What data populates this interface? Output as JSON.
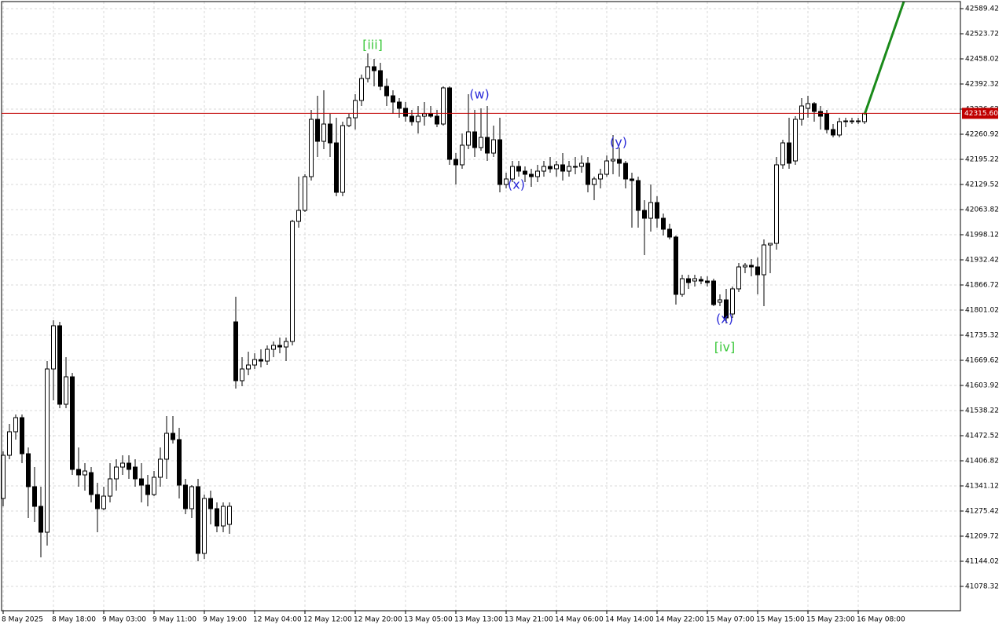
{
  "chart_data": {
    "type": "candlestick",
    "grid": true,
    "up_color": "#ffffff",
    "down_color": "#000000",
    "wick_color": "#000000",
    "ylim": [
      41014.67,
      42607.9
    ],
    "yticks": [
      42589.42,
      42523.72,
      42458.02,
      42392.32,
      42326.62,
      42260.92,
      42195.22,
      42129.52,
      42063.82,
      41998.12,
      41932.42,
      41866.72,
      41801.02,
      41735.32,
      41669.62,
      41603.92,
      41538.22,
      41472.52,
      41406.82,
      41341.12,
      41275.42,
      41209.72,
      41144.02,
      41078.32
    ],
    "xlim": [
      -0.25,
      152.25
    ],
    "xticks": [
      {
        "value": 0,
        "label": "8 May 2025"
      },
      {
        "value": 8,
        "label": "8 May 18:00"
      },
      {
        "value": 16,
        "label": "9 May 03:00"
      },
      {
        "value": 24,
        "label": "9 May 11:00"
      },
      {
        "value": 32,
        "label": "9 May 19:00"
      },
      {
        "value": 40,
        "label": "12 May 04:00"
      },
      {
        "value": 48,
        "label": "12 May 12:00"
      },
      {
        "value": 56,
        "label": "12 May 20:00"
      },
      {
        "value": 64,
        "label": "13 May 05:00"
      },
      {
        "value": 72,
        "label": "13 May 13:00"
      },
      {
        "value": 80,
        "label": "13 May 21:00"
      },
      {
        "value": 88,
        "label": "14 May 06:00"
      },
      {
        "value": 96,
        "label": "14 May 14:00"
      },
      {
        "value": 104,
        "label": "14 May 22:00"
      },
      {
        "value": 112,
        "label": "15 May 07:00"
      },
      {
        "value": 120,
        "label": "15 May 15:00"
      },
      {
        "value": 128,
        "label": "15 May 23:00"
      },
      {
        "value": 136,
        "label": "16 May 08:00"
      }
    ],
    "price_line": {
      "value": 42315.6,
      "label": "42315.60",
      "color": "#c00000"
    },
    "annotations": [
      {
        "text": "[iii]",
        "color": "#3cc83c"
      },
      {
        "text": "(w)",
        "color": "#2a2ad8"
      },
      {
        "text": "(x)",
        "color": "#2a2ad8"
      },
      {
        "text": "(y)",
        "color": "#2a2ad8"
      },
      {
        "text": "(x)",
        "color": "#2a2ad8"
      },
      {
        "text": "[iv]",
        "color": "#3cc83c"
      }
    ],
    "open": [
      41308.3,
      41421.2,
      41482.8,
      41519.7,
      41425.3,
      41339.1,
      41287.7,
      41220.0,
      41647.0,
      41760.0,
      41554.7,
      41626.5,
      41384.3,
      41369.9,
      41376.0,
      41318.5,
      41281.6,
      41314.4,
      41359.6,
      41390.4,
      41400.7,
      41390.4,
      41359.6,
      41343.2,
      41318.5,
      41363.7,
      41411.0,
      41478.7,
      41462.3,
      41343.2,
      41281.6,
      41339.1,
      41164.6,
      41308.3,
      41281.6,
      41236.4,
      41240.5,
      41770.2,
      41616.3,
      41647.0,
      41657.3,
      41671.7,
      41667.6,
      41698.4,
      41708.7,
      41704.5,
      41718.9,
      42033.0,
      42061.8,
      42150.0,
      42299.9,
      42242.4,
      42287.6,
      42238.3,
      42109.0,
      42283.5,
      42304.0,
      42349.2,
      42406.7,
      42437.5,
      42427.2,
      42386.2,
      42361.5,
      42345.1,
      42328.7,
      42308.1,
      42293.8,
      42308.1,
      42314.3,
      42308.1,
      42287.6,
      42382.1,
      42195.2,
      42180.9,
      42232.2,
      42267.1,
      42226.0,
      42252.7,
      42211.6,
      42246.5,
      42129.5,
      42143.9,
      42176.7,
      42164.4,
      42156.2,
      42150.0,
      42164.4,
      42176.7,
      42170.6,
      42180.9,
      42164.4,
      42176.7,
      42176.7,
      42185.0,
      42129.5,
      42143.9,
      42156.2,
      42191.1,
      42195.2,
      42185.0,
      42143.9,
      42139.8,
      42061.8,
      42041.2,
      42082.3,
      42041.2,
      42012.5,
      41992.0,
      41842.1,
      41883.1,
      41877.0,
      41881.1,
      41877.0,
      41877.0,
      41821.6,
      41827.7,
      41790.8,
      41856.5,
      41913.9,
      41918.1,
      41913.9,
      41893.4,
      41971.4,
      41975.5,
      42180.9,
      42238.3,
      42191.1,
      42299.9,
      42328.7,
      42341.0,
      42320.5,
      42314.3,
      42273.2,
      42258.9,
      42293.8,
      42293.8,
      42293.8,
      42293.8
    ],
    "high": [
      41431.5,
      41503.3,
      41528.0,
      41528.0,
      41441.7,
      41390.4,
      41339.1,
      41667.6,
      41774.3,
      41770.2,
      41677.8,
      41636.8,
      41441.7,
      41400.7,
      41390.4,
      41349.3,
      41339.1,
      41400.7,
      41411.0,
      41421.2,
      41421.2,
      41411.0,
      41400.7,
      41369.9,
      41380.1,
      41441.7,
      41523.9,
      41523.9,
      41493.0,
      41359.6,
      41343.2,
      41359.6,
      41318.5,
      41328.8,
      41298.0,
      41298.0,
      41298.0,
      41836.0,
      41677.8,
      41692.2,
      41688.1,
      41698.4,
      41708.7,
      41718.9,
      41729.2,
      41729.2,
      42037.1,
      42150.0,
      42156.2,
      42324.6,
      42361.5,
      42375.9,
      42314.3,
      42304.0,
      42293.8,
      42314.3,
      42365.6,
      42417.0,
      42472.4,
      42458.0,
      42447.8,
      42406.7,
      42375.9,
      42355.4,
      42345.1,
      42324.6,
      42334.8,
      42345.1,
      42334.8,
      42324.6,
      42386.2,
      42386.2,
      42211.6,
      42263.0,
      42365.6,
      42324.6,
      42328.7,
      42334.8,
      42283.5,
      42304.0,
      42160.3,
      42191.1,
      42191.1,
      42176.7,
      42170.6,
      42180.9,
      42191.1,
      42201.4,
      42191.1,
      42211.6,
      42191.1,
      42201.4,
      42205.5,
      42201.4,
      42150.0,
      42170.6,
      42205.5,
      42258.9,
      42226.0,
      42191.1,
      42160.3,
      42150.0,
      42088.5,
      42129.5,
      42098.7,
      42053.6,
      42026.9,
      41996.1,
      41893.4,
      41893.4,
      41893.4,
      41889.3,
      41889.3,
      41883.1,
      41842.1,
      41856.5,
      41862.6,
      41924.2,
      41924.2,
      41934.5,
      41938.6,
      41985.8,
      41975.5,
      42201.4,
      42246.5,
      42304.0,
      42308.1,
      42355.4,
      42361.5,
      42345.1,
      42334.8,
      42324.6,
      42287.6,
      42304.0,
      42304.0,
      42304.0,
      42304.0,
      42320.5
    ],
    "low": [
      41287.7,
      41411.0,
      41462.3,
      41400.7,
      41257.0,
      41246.7,
      41154.3,
      41185.1,
      41564.9,
      41544.4,
      41544.4,
      41369.9,
      41339.1,
      41328.8,
      41298.0,
      41220.0,
      41277.5,
      41298.0,
      41328.8,
      41369.9,
      41359.6,
      41339.1,
      41298.0,
      41287.7,
      41314.4,
      41339.1,
      41359.6,
      41452.0,
      41308.3,
      41267.2,
      41257.0,
      41144.0,
      41150.2,
      41240.5,
      41220.0,
      41220.0,
      41215.9,
      41595.7,
      41601.9,
      41630.6,
      41647.0,
      41651.2,
      41657.3,
      41677.8,
      41688.1,
      41667.6,
      41708.7,
      42016.6,
      42057.7,
      42139.8,
      42201.4,
      42221.9,
      42201.4,
      42098.7,
      42098.7,
      42279.4,
      42273.2,
      42334.8,
      42396.5,
      42386.2,
      42375.9,
      42334.8,
      42314.3,
      42304.0,
      42293.8,
      42283.5,
      42263.0,
      42283.5,
      42304.0,
      42279.4,
      42283.5,
      42180.9,
      42129.5,
      42170.6,
      42221.9,
      42201.4,
      42217.8,
      42191.1,
      42201.4,
      42109.0,
      42119.3,
      42135.7,
      42150.0,
      42135.7,
      42123.4,
      42135.7,
      42150.0,
      42160.3,
      42150.0,
      42139.8,
      42150.0,
      42156.2,
      42160.3,
      42109.0,
      42088.5,
      42119.3,
      42150.0,
      42156.2,
      42150.0,
      42119.3,
      42016.6,
      42016.6,
      41944.7,
      42006.3,
      42016.6,
      41996.1,
      41985.8,
      41815.4,
      41836.0,
      41856.5,
      41862.6,
      41868.8,
      41862.6,
      41811.3,
      41811.3,
      41766.1,
      41780.5,
      41848.2,
      41897.5,
      41889.3,
      41842.1,
      41811.3,
      41897.5,
      41959.1,
      42170.6,
      42170.6,
      42180.9,
      42283.5,
      42304.0,
      42293.8,
      42273.2,
      42263.0,
      42252.7,
      42252.7,
      42279.4,
      42287.6,
      42287.6,
      42287.6
    ],
    "close": [
      41421.2,
      41482.8,
      41519.7,
      41425.3,
      41339.1,
      41287.7,
      41220.0,
      41647.0,
      41760.0,
      41554.7,
      41626.5,
      41384.3,
      41369.9,
      41380.1,
      41318.5,
      41281.6,
      41314.4,
      41359.6,
      41390.4,
      41400.7,
      41384.3,
      41359.6,
      41343.2,
      41318.5,
      41363.7,
      41411.0,
      41478.7,
      41462.3,
      41343.2,
      41281.6,
      41339.1,
      41164.6,
      41308.3,
      41281.6,
      41236.4,
      41287.7,
      41287.7,
      41616.3,
      41647.0,
      41657.3,
      41671.7,
      41667.6,
      41698.4,
      41708.7,
      41704.5,
      41718.9,
      42033.0,
      42061.8,
      42150.0,
      42299.9,
      42242.4,
      42287.6,
      42238.3,
      42109.0,
      42283.5,
      42304.0,
      42349.2,
      42406.7,
      42437.5,
      42427.2,
      42386.2,
      42361.5,
      42345.1,
      42328.7,
      42308.1,
      42293.8,
      42308.1,
      42314.3,
      42308.1,
      42287.6,
      42382.1,
      42195.2,
      42180.9,
      42232.2,
      42267.1,
      42226.0,
      42252.7,
      42211.6,
      42246.5,
      42129.5,
      42143.9,
      42176.7,
      42164.4,
      42156.2,
      42150.0,
      42164.4,
      42176.7,
      42170.6,
      42180.9,
      42164.4,
      42176.7,
      42176.7,
      42185.0,
      42129.5,
      42143.9,
      42156.2,
      42191.1,
      42195.2,
      42185.0,
      42143.9,
      42139.8,
      42061.8,
      42041.2,
      42082.3,
      42041.2,
      42012.5,
      41992.0,
      41842.1,
      41883.1,
      41872.9,
      41883.1,
      41877.0,
      41872.9,
      41815.4,
      41827.7,
      41780.5,
      41856.5,
      41913.9,
      41918.1,
      41913.9,
      41893.4,
      41971.4,
      41975.5,
      42180.9,
      42238.3,
      42185.0,
      42299.9,
      42334.8,
      42341.0,
      42320.5,
      42308.1,
      42273.2,
      42258.9,
      42293.8,
      42295.8,
      42295.8,
      42295.8,
      42315.6
    ]
  }
}
